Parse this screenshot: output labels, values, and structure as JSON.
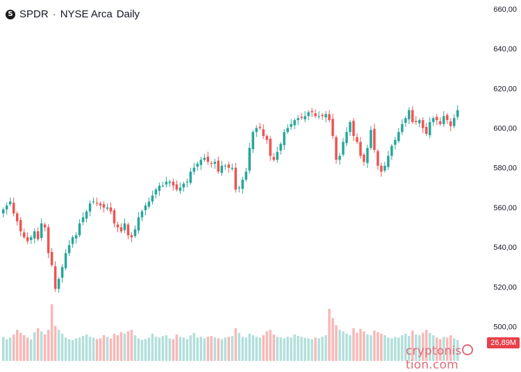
{
  "header": {
    "logo": "S",
    "symbol": "SPDR",
    "separator": "·",
    "exchange": "NYSE Arca",
    "interval": "Daily"
  },
  "volume_label": "26,89M",
  "watermark": "cryptonisation.com",
  "colors": {
    "up": "#26a69a",
    "down": "#ef5350",
    "up_volume": "#b2dfdb",
    "down_volume": "#f7b8b6",
    "axis_text": "#131722",
    "badge": "#e8404a"
  },
  "chart_data": {
    "type": "candlestick",
    "y_ticks": [
      "660,00",
      "640,00",
      "620,00",
      "600,00",
      "580,00",
      "560,00",
      "540,00",
      "520,00",
      "500,00"
    ],
    "y_tick_values": [
      660,
      640,
      620,
      600,
      580,
      560,
      540,
      520,
      500
    ],
    "ylim": [
      492.5,
      664.5
    ],
    "grid": false,
    "approx_close": [
      559,
      561,
      563,
      557,
      553,
      548,
      545,
      543,
      545,
      548,
      544,
      552,
      550,
      537,
      531,
      519,
      524,
      530,
      537,
      541,
      545,
      546,
      552,
      555,
      558,
      562,
      563,
      562,
      561,
      560,
      560,
      558,
      552,
      550,
      548,
      552,
      546,
      545,
      549,
      555,
      558,
      561,
      563,
      566,
      569,
      571,
      571,
      573,
      573,
      571,
      569,
      570,
      572,
      573,
      578,
      580,
      582,
      584,
      585,
      583,
      582,
      583,
      578,
      581,
      581,
      580,
      580,
      569,
      570,
      574,
      578,
      590,
      598,
      600,
      600,
      596,
      594,
      586,
      584,
      588,
      592,
      598,
      600,
      602,
      604,
      605,
      605,
      606,
      608,
      608,
      606,
      606,
      606,
      607,
      604,
      596,
      584,
      586,
      593,
      598,
      603,
      596,
      593,
      586,
      583,
      590,
      599,
      589,
      581,
      578,
      581,
      586,
      591,
      594,
      598,
      602,
      605,
      609,
      603,
      603,
      604,
      600,
      597,
      603,
      605,
      604,
      602,
      606,
      604,
      601,
      605,
      609
    ],
    "volume_millions": [
      31,
      28,
      30,
      34,
      40,
      36,
      33,
      30,
      28,
      37,
      42,
      38,
      34,
      40,
      73,
      45,
      40,
      35,
      30,
      28,
      27,
      29,
      30,
      32,
      34,
      31,
      30,
      28,
      29,
      33,
      31,
      29,
      35,
      33,
      37,
      35,
      38,
      40,
      33,
      29,
      27,
      28,
      30,
      35,
      31,
      30,
      32,
      33,
      29,
      28,
      34,
      31,
      30,
      28,
      33,
      36,
      30,
      31,
      29,
      31,
      32,
      30,
      29,
      28,
      30,
      31,
      32,
      42,
      36,
      31,
      30,
      35,
      33,
      31,
      30,
      33,
      38,
      40,
      34,
      31,
      30,
      29,
      31,
      30,
      34,
      32,
      31,
      30,
      29,
      28,
      30,
      29,
      31,
      33,
      67,
      55,
      46,
      40,
      38,
      35,
      33,
      42,
      36,
      41,
      38,
      34,
      33,
      39,
      37,
      35,
      33,
      30,
      29,
      31,
      30,
      33,
      35,
      32,
      39,
      34,
      33,
      36,
      40,
      36,
      33,
      30,
      28,
      31,
      30,
      33,
      29,
      26.89
    ]
  }
}
